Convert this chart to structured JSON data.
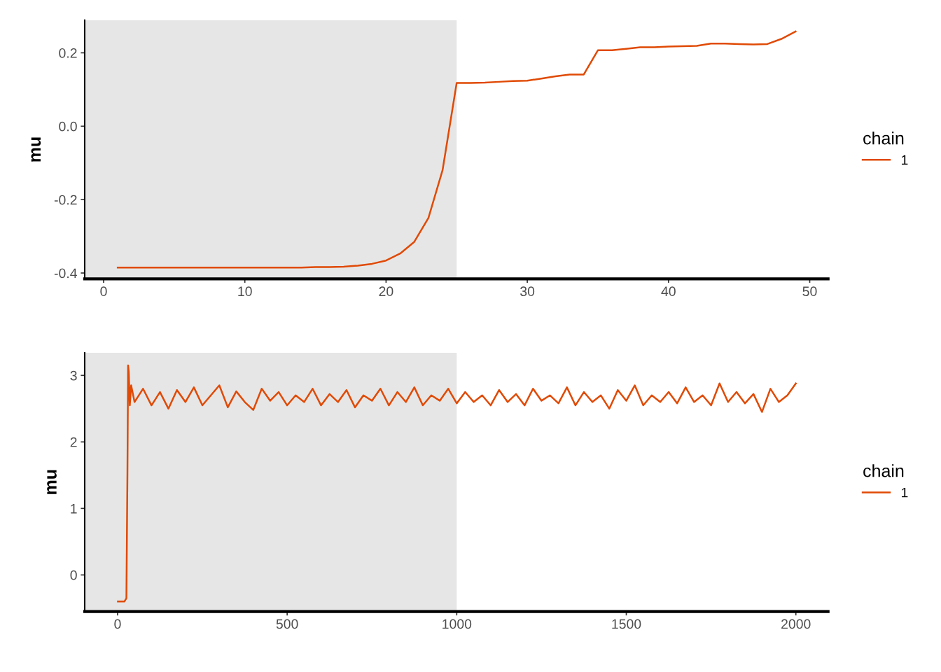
{
  "chart_data": [
    {
      "type": "line",
      "ylabel": "mu",
      "legend_title": "chain",
      "legend": "right",
      "grid": false,
      "x": [
        1,
        2,
        3,
        4,
        5,
        6,
        7,
        8,
        9,
        10,
        11,
        12,
        13,
        14,
        15,
        16,
        17,
        18,
        19,
        20,
        21,
        22,
        23,
        24,
        25,
        26,
        27,
        28,
        29,
        30,
        31,
        32,
        33,
        34,
        35,
        36,
        37,
        38,
        39,
        40,
        41,
        42,
        43,
        44,
        45,
        46,
        47,
        48,
        49
      ],
      "series": [
        {
          "name": "1",
          "color": "#e04a05",
          "values": [
            -0.385,
            -0.385,
            -0.385,
            -0.385,
            -0.385,
            -0.385,
            -0.385,
            -0.385,
            -0.385,
            -0.385,
            -0.385,
            -0.385,
            -0.385,
            -0.385,
            -0.384,
            -0.384,
            -0.383,
            -0.38,
            -0.375,
            -0.366,
            -0.347,
            -0.315,
            -0.25,
            -0.12,
            0.118,
            0.118,
            0.119,
            0.121,
            0.123,
            0.124,
            0.13,
            0.136,
            0.141,
            0.141,
            0.207,
            0.207,
            0.211,
            0.215,
            0.215,
            0.217,
            0.218,
            0.219,
            0.225,
            0.225,
            0.224,
            0.223,
            0.224,
            0.238,
            0.258
          ]
        }
      ],
      "xlim": [
        -1.34,
        51.3
      ],
      "ylim": [
        -0.416,
        0.289
      ],
      "xticks": [
        0,
        10,
        20,
        30,
        40,
        50
      ],
      "yticks": [
        {
          "value": -0.4,
          "label": "-0.4"
        },
        {
          "value": -0.2,
          "label": "-0.2"
        },
        {
          "value": 0,
          "label": "0.0"
        },
        {
          "value": 0.2,
          "label": "0.2"
        }
      ],
      "bands": [
        {
          "axis": "x",
          "from": -1.34,
          "to": 25,
          "color": "#e6e6e6"
        }
      ]
    },
    {
      "type": "line",
      "ylabel": "mu",
      "legend_title": "chain",
      "legend": "right",
      "grid": false,
      "x": [
        1,
        20,
        26,
        29,
        31,
        33,
        36,
        40,
        50,
        75,
        100,
        125,
        150,
        175,
        200,
        225,
        250,
        275,
        300,
        325,
        350,
        375,
        400,
        425,
        450,
        475,
        500,
        525,
        550,
        575,
        600,
        625,
        650,
        675,
        700,
        725,
        750,
        775,
        800,
        825,
        850,
        875,
        900,
        925,
        950,
        975,
        1000,
        1025,
        1050,
        1075,
        1100,
        1125,
        1150,
        1175,
        1200,
        1225,
        1250,
        1275,
        1300,
        1325,
        1350,
        1375,
        1400,
        1425,
        1450,
        1475,
        1500,
        1525,
        1550,
        1575,
        1600,
        1625,
        1650,
        1675,
        1700,
        1725,
        1750,
        1775,
        1800,
        1825,
        1850,
        1875,
        1900,
        1925,
        1950,
        1975,
        2000
      ],
      "series": [
        {
          "name": "1",
          "color": "#e04a05",
          "values": [
            -0.4,
            -0.4,
            -0.35,
            1.5,
            3.15,
            3.05,
            2.55,
            2.85,
            2.6,
            2.8,
            2.55,
            2.75,
            2.5,
            2.78,
            2.6,
            2.82,
            2.55,
            2.7,
            2.85,
            2.52,
            2.76,
            2.6,
            2.48,
            2.8,
            2.62,
            2.75,
            2.55,
            2.7,
            2.6,
            2.8,
            2.55,
            2.72,
            2.6,
            2.78,
            2.52,
            2.7,
            2.62,
            2.8,
            2.55,
            2.75,
            2.6,
            2.82,
            2.55,
            2.7,
            2.62,
            2.8,
            2.58,
            2.75,
            2.6,
            2.7,
            2.55,
            2.78,
            2.6,
            2.72,
            2.55,
            2.8,
            2.62,
            2.7,
            2.58,
            2.82,
            2.55,
            2.75,
            2.6,
            2.7,
            2.5,
            2.78,
            2.62,
            2.85,
            2.55,
            2.7,
            2.6,
            2.75,
            2.58,
            2.82,
            2.6,
            2.7,
            2.55,
            2.88,
            2.6,
            2.75,
            2.58,
            2.72,
            2.45,
            2.8,
            2.6,
            2.7,
            2.88
          ]
        }
      ],
      "xlim": [
        -97,
        2095
      ],
      "ylim": [
        -0.55,
        3.34
      ],
      "xticks": [
        0,
        500,
        1000,
        1500,
        2000
      ],
      "yticks": [
        0,
        1,
        2,
        3
      ],
      "bands": [
        {
          "axis": "x",
          "from": -97,
          "to": 1000,
          "color": "#e6e6e6"
        }
      ]
    }
  ]
}
